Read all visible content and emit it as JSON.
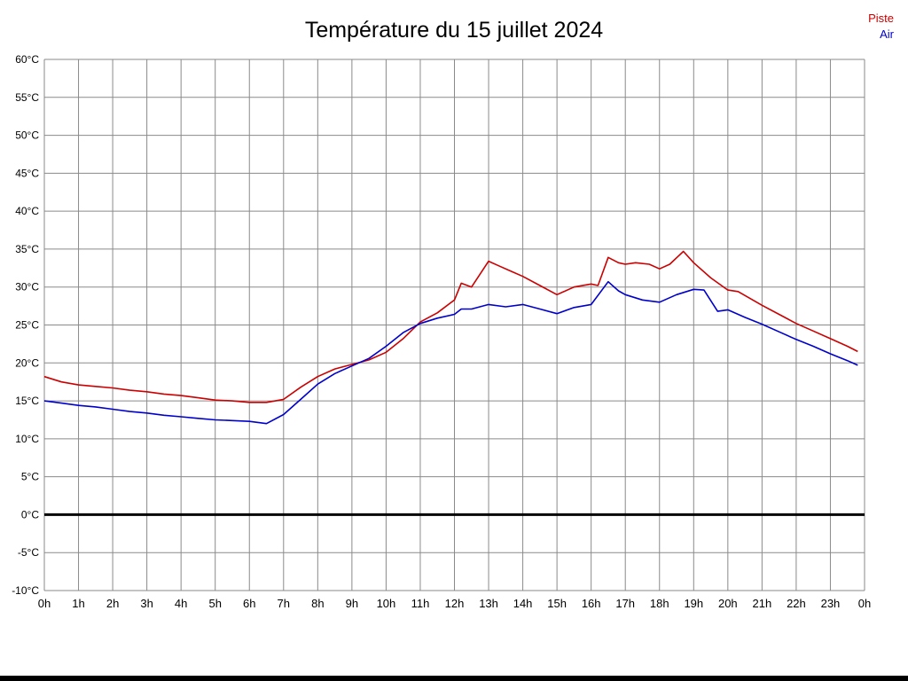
{
  "title": "Température du 15 juillet 2024",
  "legend": {
    "piste_label": "Piste",
    "air_label": "Air"
  },
  "colors": {
    "piste": "#cc0000",
    "air": "#0000cc",
    "grid": "#8a8a8a",
    "zero_line": "#000000",
    "axis_text": "#000000"
  },
  "chart_data": {
    "type": "line",
    "title": "Température du 15 juillet 2024",
    "xlim": [
      0,
      24
    ],
    "ylim": [
      -10,
      60
    ],
    "y_tick_step": 5,
    "grid": true,
    "legend_position": "top-right",
    "x_tick_labels": [
      "0h",
      "1h",
      "2h",
      "3h",
      "4h",
      "5h",
      "6h",
      "7h",
      "8h",
      "9h",
      "10h",
      "11h",
      "12h",
      "13h",
      "14h",
      "15h",
      "16h",
      "17h",
      "18h",
      "19h",
      "20h",
      "21h",
      "22h",
      "23h",
      "0h"
    ],
    "y_tick_labels": [
      "60°C",
      "55°C",
      "50°C",
      "45°C",
      "40°C",
      "35°C",
      "30°C",
      "25°C",
      "20°C",
      "15°C",
      "10°C",
      "5°C",
      "0°C",
      "-5°C",
      "-10°C"
    ],
    "zero_line": true,
    "series": [
      {
        "name": "Piste",
        "color": "#cc0000",
        "x": [
          0,
          0.5,
          1,
          1.5,
          2,
          2.5,
          3,
          3.5,
          4,
          4.5,
          5,
          5.5,
          6,
          6.5,
          7,
          7.5,
          8,
          8.5,
          9,
          9.5,
          10,
          10.5,
          11,
          11.5,
          12,
          12.2,
          12.5,
          13,
          13.3,
          13.7,
          14,
          14.5,
          15,
          15.5,
          16,
          16.2,
          16.5,
          16.8,
          17,
          17.3,
          17.7,
          18,
          18.3,
          18.7,
          19,
          19.5,
          20,
          20.3,
          21,
          21.5,
          22,
          22.5,
          23,
          23.5,
          23.8
        ],
        "y": [
          18.2,
          17.5,
          17.1,
          16.9,
          16.7,
          16.4,
          16.2,
          15.9,
          15.7,
          15.4,
          15.1,
          15.0,
          14.8,
          14.8,
          15.2,
          16.8,
          18.2,
          19.2,
          19.8,
          20.4,
          21.4,
          23.2,
          25.4,
          26.6,
          28.3,
          30.5,
          30.0,
          33.4,
          32.8,
          32.0,
          31.4,
          30.2,
          29.0,
          30.0,
          30.4,
          30.2,
          33.9,
          33.2,
          33.0,
          33.2,
          33.0,
          32.4,
          33.0,
          34.7,
          33.2,
          31.2,
          29.6,
          29.4,
          27.6,
          26.4,
          25.2,
          24.2,
          23.2,
          22.2,
          21.5
        ]
      },
      {
        "name": "Air",
        "color": "#0000cc",
        "x": [
          0,
          0.5,
          1,
          1.5,
          2,
          2.5,
          3,
          3.5,
          4,
          4.5,
          5,
          5.5,
          6,
          6.5,
          7,
          7.5,
          8,
          8.5,
          9,
          9.5,
          10,
          10.5,
          11,
          11.5,
          12,
          12.2,
          12.5,
          13,
          13.5,
          14,
          14.5,
          15,
          15.5,
          16,
          16.5,
          16.8,
          17,
          17.5,
          18,
          18.5,
          19,
          19.3,
          19.7,
          20,
          20.5,
          21,
          21.5,
          22,
          22.5,
          23,
          23.5,
          23.8
        ],
        "y": [
          15.0,
          14.7,
          14.4,
          14.2,
          13.9,
          13.6,
          13.4,
          13.1,
          12.9,
          12.7,
          12.5,
          12.4,
          12.3,
          12.0,
          13.2,
          15.2,
          17.2,
          18.6,
          19.6,
          20.6,
          22.2,
          24.0,
          25.2,
          25.9,
          26.4,
          27.1,
          27.1,
          27.7,
          27.4,
          27.7,
          27.1,
          26.5,
          27.3,
          27.7,
          30.7,
          29.5,
          29.0,
          28.3,
          28.0,
          29.0,
          29.7,
          29.6,
          26.8,
          27.0,
          26.0,
          25.1,
          24.1,
          23.1,
          22.2,
          21.2,
          20.3,
          19.7
        ]
      }
    ]
  }
}
